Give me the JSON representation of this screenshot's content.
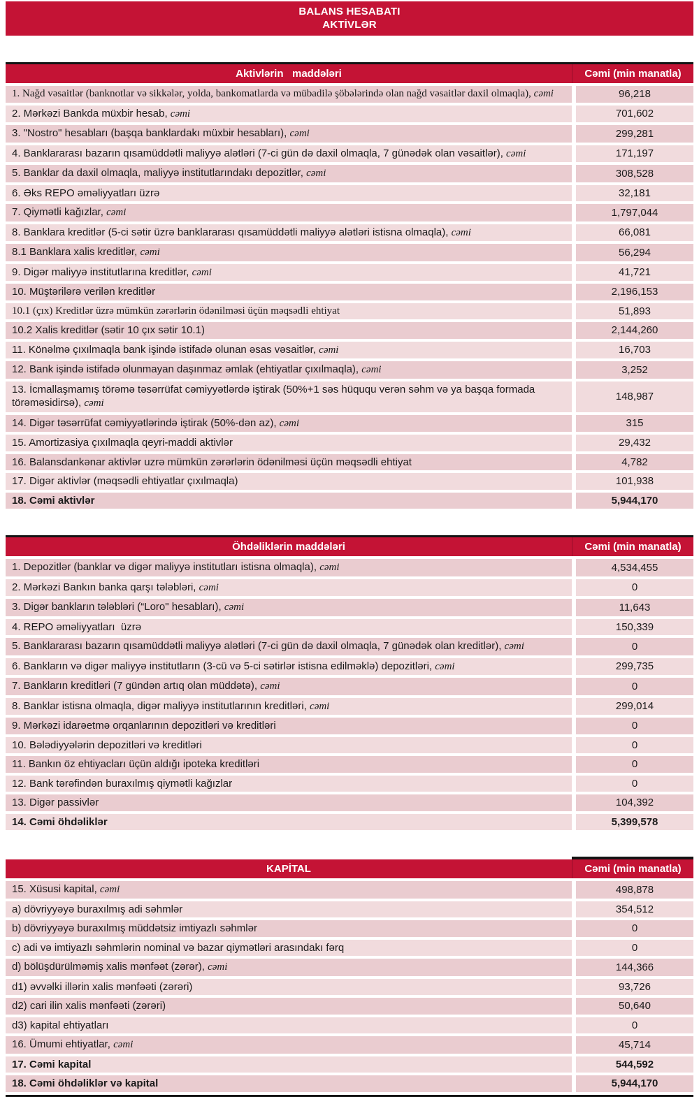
{
  "banner": {
    "line1": "BALANS HESABATI",
    "line2": "AKTİVLƏR"
  },
  "colors": {
    "accent": "#c41335",
    "row_bg": "#eaccd0",
    "row_bg_alt": "#f1dbdd",
    "line": "#141414",
    "header_text": "#ffffff"
  },
  "sections": [
    {
      "id": "assets",
      "header": "Aktivlərin   maddələri",
      "value_header": "Cəmi (min manatla)",
      "rows": [
        {
          "label": "1. Nağd vəsaitlər (banknotlar və sikkələr, yolda, bankomatlarda və mübadilə şöbələrində olan nağd vəsaitlər daxil olmaqla),",
          "suffix": "cəmi",
          "value": "96,218",
          "serif": true
        },
        {
          "label": "2. Mərkəzi Bankda müxbir hesab,",
          "suffix": "cəmi",
          "value": "701,602"
        },
        {
          "label": "3. \"Nostro\" hesabları (başqa banklardakı müxbir hesabları),",
          "suffix": "cəmi",
          "value": "299,281"
        },
        {
          "label": "4. Banklararası bazarın qısamüddətli maliyyə alətləri (7-ci gün də daxil olmaqla, 7 günədək olan vəsaitlər),",
          "suffix": "cəmi",
          "value": "171,197"
        },
        {
          "label": "5. Banklar da daxil olmaqla, maliyyə institutlarındakı depozitlər,",
          "suffix": "cəmi",
          "value": "308,528"
        },
        {
          "label": "6. Əks REPO əməliyyatları üzrə",
          "value": "32,181"
        },
        {
          "label": "7. Qiymətli kağızlar,",
          "suffix": "cəmi",
          "value": "1,797,044"
        },
        {
          "label": "8. Banklara kreditlər (5-ci sətir üzrə banklararası qısamüddətli maliyyə alətləri istisna olmaqla),",
          "suffix": "cəmi",
          "value": "66,081"
        },
        {
          "label": "8.1 Banklara xalis kreditlər,",
          "suffix": "cəmi",
          "value": "56,294"
        },
        {
          "label": "9. Digər maliyyə institutlarına kreditlər,",
          "suffix": "cəmi",
          "value": "41,721"
        },
        {
          "label": "10. Müştərilərə verilən kreditlər",
          "value": "2,196,153"
        },
        {
          "label": "10.1 (çıx) Kreditlər üzrə mümkün zərərlərin ödənilməsi üçün məqsədli ehtiyat",
          "value": "51,893",
          "serif": true
        },
        {
          "label": "10.2 Xalis kreditlər (sətir 10 çıx sətir 10.1)",
          "value": "2,144,260"
        },
        {
          "label": "11. Könəlmə çıxılmaqla bank işində istifadə olunan əsas vəsaitlər,",
          "suffix": "cəmi",
          "value": "16,703"
        },
        {
          "label": "12. Bank işində istifadə olunmayan daşınmaz əmlak (ehtiyatlar çıxılmaqla),",
          "suffix": "cəmi",
          "value": "3,252"
        },
        {
          "label": "13. İcmallaşmamış törəmə təsərrüfat cəmiyyətlərdə iştirak (50%+1 səs hüququ verən səhm və ya başqa formada törəməsidirsə),",
          "suffix": "cəmi",
          "value": "148,987"
        },
        {
          "label": "14. Digər təsərrüfat cəmiyyətlərində iştirak (50%-dən az),",
          "suffix": "cəmi",
          "value": "315"
        },
        {
          "label": "15. Amortizasiya çıxılmaqla qeyri-maddi aktivlər",
          "value": "29,432"
        },
        {
          "label": "16. Balansdankənar aktivlər uzrə mümkün zərərlərin ödənilməsi üçün məqsədli ehtiyat",
          "value": "4,782"
        },
        {
          "label": "17. Digər aktivlər (məqsədli ehtiyatlar çıxılmaqla)",
          "value": "101,938"
        },
        {
          "label": "18. Cəmi aktivlər",
          "value": "5,944,170",
          "bold": true
        }
      ]
    },
    {
      "id": "liabilities",
      "header": "Öhdəliklərin maddələri",
      "value_header": "Cəmi (min manatla)",
      "rows": [
        {
          "label": "1. Depozitlər (banklar və digər maliyyə institutları istisna olmaqla),",
          "suffix": "cəmi",
          "value": "4,534,455"
        },
        {
          "label": "2. Mərkəzi Bankın banka qarşı tələbləri,",
          "suffix": "cəmi",
          "value": "0"
        },
        {
          "label": "3. Digər bankların tələbləri (“Loro\" hesabları),",
          "suffix": "cəmi",
          "value": "11,643"
        },
        {
          "label": "4. REPO əməliyyatları  üzrə",
          "value": "150,339"
        },
        {
          "label": "5. Banklararası bazarın qısamüddətli maliyyə alətləri (7-ci gün də daxil olmaqla, 7 günədək olan kreditlər),",
          "suffix": "cəmi",
          "value": "0"
        },
        {
          "label": "6. Bankların və digər maliyyə institutların (3-cü və 5-ci sətirlər istisna edilməklə) depozitləri,",
          "suffix": "cəmi",
          "value": "299,735"
        },
        {
          "label": "7. Bankların kreditləri (7 gündən artıq olan müddətə),",
          "suffix": "cəmi",
          "value": "0"
        },
        {
          "label": "8. Banklar istisna olmaqla, digər maliyyə institutlarının kreditləri,",
          "suffix": "cəmi",
          "value": "299,014"
        },
        {
          "label": "9. Mərkəzi idarəetmə orqanlarının depozitləri və kreditləri",
          "value": "0"
        },
        {
          "label": "10. Bələdiyyələrin depozitləri və kreditləri",
          "value": "0"
        },
        {
          "label": "11. Bankın öz ehtiyacları üçün aldığı ipoteka kreditləri",
          "value": "0"
        },
        {
          "label": "12. Bank tərəfindən buraxılmış qiymətli kağızlar",
          "value": "0"
        },
        {
          "label": "13. Digər passivlər",
          "value": "104,392"
        },
        {
          "label": "14. Cəmi öhdəliklər",
          "value": "5,399,578",
          "bold": true
        }
      ]
    },
    {
      "id": "capital",
      "header": "KAPİTAL",
      "value_header": "Cəmi (min manatla)",
      "topline_right_only": true,
      "rows": [
        {
          "label": "15. Xüsusi kapital,",
          "suffix": "cəmi",
          "value": "498,878"
        },
        {
          "label": "a) dövriyyəyə buraxılmış adi səhmlər",
          "value": "354,512"
        },
        {
          "label": "b) dövriyyəyə buraxılmış müddətsiz imtiyazlı səhmlər",
          "value": "0"
        },
        {
          "label": "c) adi və imtiyazlı səhmlərin nominal və bazar qiymətləri arasındakı fərq",
          "value": "0"
        },
        {
          "label": "d) bölüşdürülməmiş xalis mənfəət (zərər),",
          "suffix": "cəmi",
          "value": "144,366"
        },
        {
          "label": "d1) əvvəlki illərin xalis mənfəəti (zərəri)",
          "value": "93,726"
        },
        {
          "label": "d2) cari ilin xalis mənfəəti (zərəri)",
          "value": "50,640"
        },
        {
          "label": "d3) kapital ehtiyatları",
          "value": "0"
        },
        {
          "label": "16. Ümumi ehtiyatlar,",
          "suffix": "cəmi",
          "value": "45,714"
        },
        {
          "label": "17. Cəmi kapital",
          "value": "544,592",
          "bold": true
        },
        {
          "label": "18. Cəmi öhdəliklər və kapital",
          "value": "5,944,170",
          "bold": true
        }
      ]
    }
  ]
}
